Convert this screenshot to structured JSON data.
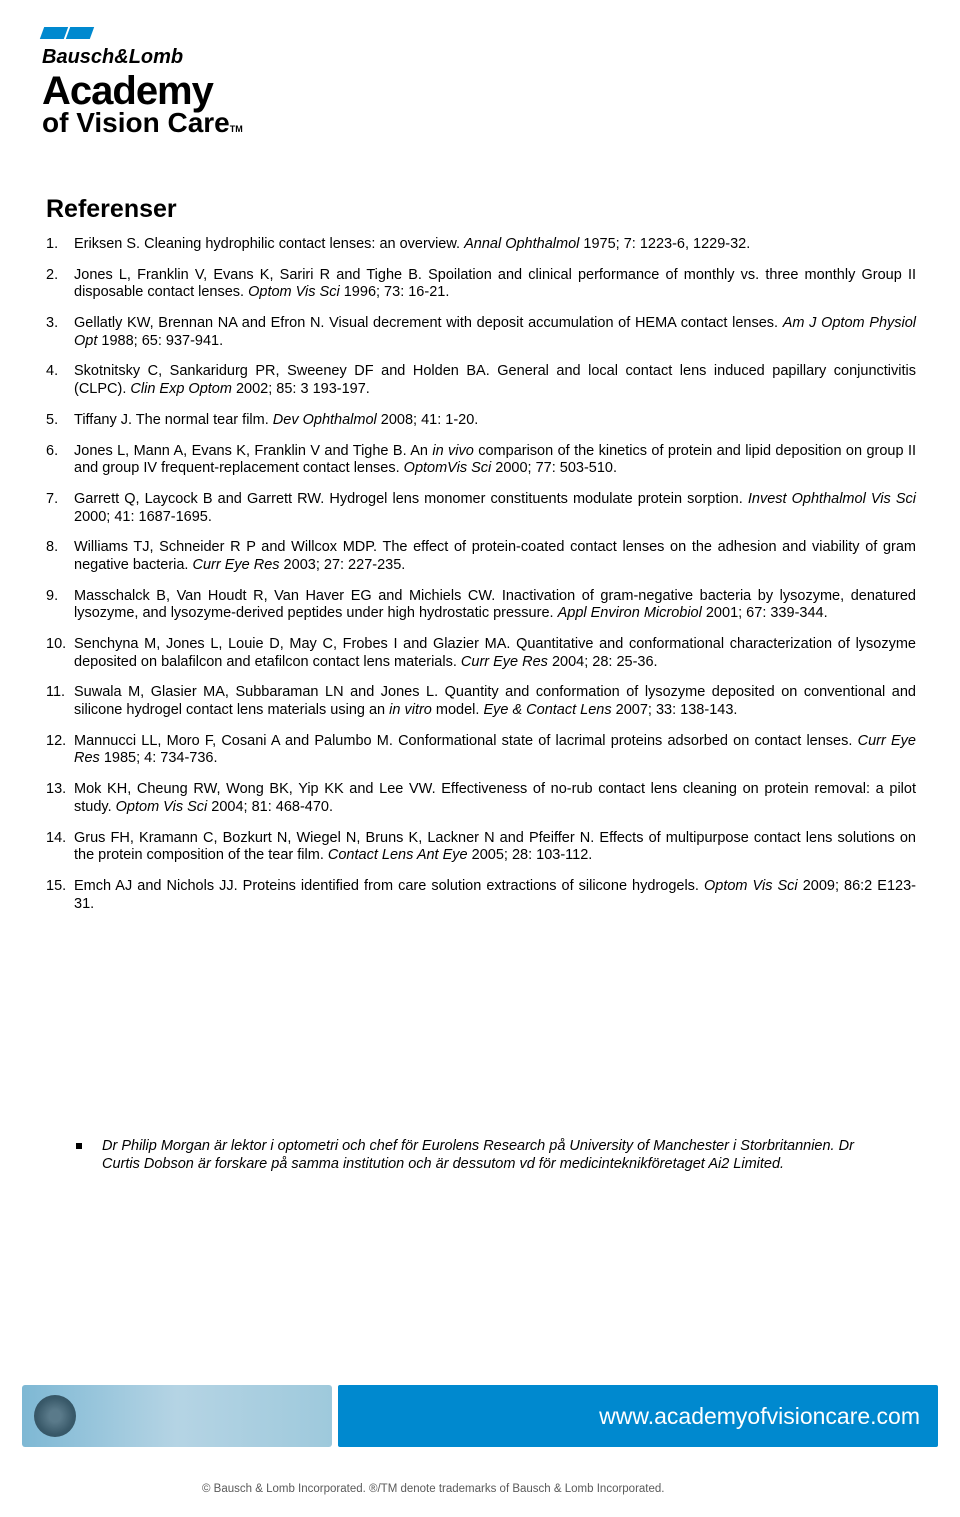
{
  "brand": {
    "line1": "Bausch&Lomb",
    "line2": "Academy",
    "line3": "of Vision Care",
    "tm": "TM"
  },
  "section_title": "Referenser",
  "references": [
    {
      "n": "1.",
      "text": "Eriksen S. Cleaning hydrophilic contact lenses: an overview. <em>Annal Ophthalmol</em> 1975; 7: 1223-6, 1229-32."
    },
    {
      "n": "2.",
      "text": "Jones L, Franklin V, Evans K, Sariri R and Tighe B. Spoilation and clinical performance of monthly vs. three monthly Group II disposable contact lenses. <em>Optom Vis Sci</em> 1996; 73: 16-21."
    },
    {
      "n": "3.",
      "text": "Gellatly KW, Brennan NA and Efron N. Visual decrement with deposit accumulation of HEMA contact lenses. <em>Am J Optom Physiol Opt</em> 1988; 65: 937-941."
    },
    {
      "n": "4.",
      "text": "Skotnitsky C, Sankaridurg PR, Sweeney DF and Holden BA. General and local contact lens induced papillary conjunctivitis (CLPC). <em>Clin Exp Optom</em> 2002; 85: 3 193-197."
    },
    {
      "n": "5.",
      "text": "Tiffany J. The normal tear film. <em>Dev Ophthalmol</em> 2008; 41: 1-20."
    },
    {
      "n": "6.",
      "text": "Jones L, Mann A, Evans K, Franklin V and Tighe B. An <em>in vivo</em> comparison of the kinetics of protein and lipid deposition on group II and group IV frequent-replacement contact lenses. <em>OptomVis Sci</em> 2000; 77: 503-510."
    },
    {
      "n": "7.",
      "text": "Garrett Q, Laycock B and Garrett RW. Hydrogel lens monomer constituents modulate protein sorption. <em>Invest Ophthalmol Vis Sci</em> 2000; 41: 1687-1695."
    },
    {
      "n": "8.",
      "text": "Williams TJ, Schneider R P and Willcox MDP. The effect of protein-coated contact lenses on the adhesion and viability of gram negative bacteria. <em>Curr Eye Res</em> 2003; 27: 227-235."
    },
    {
      "n": "9.",
      "text": "Masschalck B, Van Houdt R, Van Haver EG and Michiels CW. Inactivation of gram-negative bacteria by lysozyme, denatured lysozyme, and lysozyme-derived peptides under high hydrostatic pressure. <em>Appl Environ Microbiol</em> 2001; 67: 339-344."
    },
    {
      "n": "10.",
      "text": "Senchyna M, Jones L, Louie D, May C, Frobes I and Glazier MA. Quantitative and conformational characterization of lysozyme deposited on balafilcon and etafilcon contact lens materials. <em>Curr Eye Res</em> 2004; 28: 25-36."
    },
    {
      "n": "11.",
      "text": "Suwala M, Glasier MA, Subbaraman LN and Jones L. Quantity and conformation of lysozyme deposited on conventional and silicone hydrogel contact lens materials using an <em>in vitro</em> model. <em>Eye & Contact Lens</em> 2007; 33: 138-143."
    },
    {
      "n": "12.",
      "text": "Mannucci LL, Moro F, Cosani A and Palumbo M. Conformational state of lacrimal proteins adsorbed on contact lenses. <em>Curr Eye Res</em> 1985; 4: 734-736."
    },
    {
      "n": "13.",
      "text": "Mok KH, Cheung RW, Wong BK, Yip KK and Lee VW. Effectiveness of no-rub contact lens cleaning on protein removal: a pilot study. <em>Optom Vis Sci</em> 2004; 81: 468-470."
    },
    {
      "n": "14.",
      "text": "Grus FH, Kramann C, Bozkurt N, Wiegel N, Bruns K, Lackner N and Pfeiffer N. Effects of multipurpose contact lens solutions on the protein composition of the tear film. <em>Contact Lens Ant Eye</em> 2005; 28: 103-112."
    },
    {
      "n": "15.",
      "text": "Emch AJ and Nichols JJ. Proteins identified from care solution extractions of silicone hydrogels. <em>Optom Vis Sci</em> 2009; 86:2 E123-31."
    }
  ],
  "author_note": "Dr Philip Morgan är lektor i optometri och chef för Eurolens Research på University of Manchester i Storbritannien. Dr Curtis Dobson är forskare på samma institution och är dessutom vd för medicinteknikföretaget Ai2 Limited.",
  "footer": {
    "url": "www.academyofvisioncare.com",
    "copyright": "© Bausch & Lomb Incorporated.    ®/TM denote trademarks of Bausch & Lomb Incorporated."
  },
  "colors": {
    "brand_blue": "#0089cf",
    "text": "#000000",
    "background": "#ffffff",
    "copyright_gray": "#5a5a5a"
  }
}
